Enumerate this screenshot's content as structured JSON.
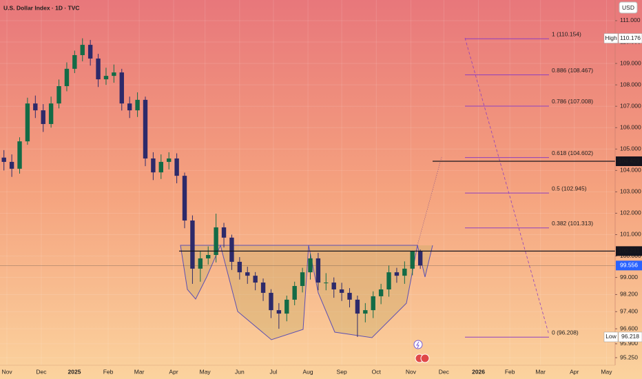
{
  "chart_data": {
    "type": "candlestick",
    "title": "U.S. Dollar Index · 1D · TVC",
    "currency": "USD",
    "categories": [
      null,
      null,
      null,
      null,
      null,
      null,
      null,
      null,
      null,
      null,
      null,
      null,
      null,
      null,
      null,
      null,
      null,
      null,
      null,
      null,
      null,
      null,
      null,
      null,
      null,
      null,
      null,
      null,
      null,
      null,
      null,
      null,
      null,
      null,
      null,
      null,
      null,
      null,
      null,
      null,
      null,
      null,
      null,
      null,
      null,
      null,
      null,
      null,
      null,
      null,
      null,
      null,
      null,
      null
    ],
    "open": [
      104.6,
      104.4,
      104.08,
      105.36,
      107.13,
      106.81,
      106.17,
      107.13,
      107.94,
      108.75,
      109.39,
      109.87,
      109.23,
      108.26,
      108.42,
      108.58,
      107.13,
      106.81,
      107.3,
      104.56,
      103.91,
      104.4,
      104.56,
      103.75,
      101.66,
      99.41,
      99.89,
      100.05,
      101.34,
      100.86,
      99.73,
      99.24,
      99.08,
      98.76,
      98.28,
      97.47,
      97.31,
      97.96,
      98.6,
      99.24,
      99.89,
      98.76,
      98.76,
      98.44,
      98.28,
      97.96,
      97.31,
      97.47,
      98.12,
      98.44,
      99.24,
      99.08,
      99.41,
      100.21
    ],
    "high": [
      104.95,
      104.75,
      105.55,
      107.4,
      107.5,
      107.1,
      107.45,
      108.25,
      109.05,
      109.6,
      110.176,
      110.1,
      109.45,
      108.8,
      108.95,
      108.75,
      107.45,
      107.65,
      107.45,
      104.85,
      104.75,
      104.85,
      104.8,
      103.9,
      101.9,
      100.25,
      100.45,
      101.98,
      101.55,
      101.0,
      99.95,
      99.5,
      99.25,
      98.95,
      98.45,
      97.8,
      98.15,
      98.8,
      99.45,
      100.1,
      100.15,
      99.2,
      99.0,
      98.75,
      98.5,
      98.15,
      97.8,
      98.35,
      98.7,
      99.55,
      99.45,
      99.75,
      100.25,
      100.3
    ],
    "low": [
      104.0,
      103.7,
      103.85,
      105.2,
      106.45,
      105.8,
      106.0,
      106.9,
      107.7,
      108.55,
      109.1,
      108.9,
      107.9,
      108.0,
      108.1,
      106.8,
      106.45,
      106.5,
      104.2,
      103.55,
      103.6,
      104.05,
      103.4,
      101.3,
      98.7,
      98.8,
      99.6,
      99.7,
      100.4,
      99.35,
      98.9,
      98.7,
      98.4,
      97.9,
      97.1,
      96.6,
      96.95,
      97.7,
      98.3,
      98.9,
      98.4,
      98.4,
      98.05,
      97.9,
      97.6,
      96.218,
      96.9,
      97.1,
      97.75,
      98.1,
      98.75,
      98.7,
      99.1,
      99.4
    ],
    "close": [
      104.4,
      104.08,
      105.36,
      107.13,
      106.81,
      106.17,
      107.13,
      107.94,
      108.75,
      109.39,
      109.87,
      109.23,
      108.26,
      108.42,
      108.58,
      107.13,
      106.81,
      107.3,
      104.56,
      103.91,
      104.4,
      104.56,
      103.75,
      101.66,
      99.41,
      99.89,
      100.05,
      101.34,
      100.86,
      99.73,
      99.24,
      99.08,
      98.76,
      98.28,
      97.47,
      97.31,
      97.96,
      98.6,
      99.24,
      99.89,
      98.76,
      98.76,
      98.44,
      98.28,
      97.96,
      97.31,
      97.47,
      98.12,
      98.44,
      99.24,
      99.08,
      99.41,
      100.21,
      99.556
    ],
    "up_color": "#136b46",
    "down_color": "#2d2a6a",
    "ylim": [
      94.897,
      111.966
    ],
    "yticks": [
      {
        "value": 111,
        "label": "111.000"
      },
      {
        "value": 110,
        "label": "110.000"
      },
      {
        "value": 109,
        "label": "109.000"
      },
      {
        "value": 108,
        "label": "108.000"
      },
      {
        "value": 107,
        "label": "107.000"
      },
      {
        "value": 106,
        "label": "106.000"
      },
      {
        "value": 105,
        "label": "105.000"
      },
      {
        "value": 104,
        "label": "104.000"
      },
      {
        "value": 103,
        "label": "103.000"
      },
      {
        "value": 102,
        "label": "102.000"
      },
      {
        "value": 101,
        "label": "101.000"
      },
      {
        "value": 100,
        "label": "100.000"
      },
      {
        "value": 99,
        "label": "99.000"
      },
      {
        "value": 98.2,
        "label": "98.200"
      },
      {
        "value": 97.4,
        "label": "97.400"
      },
      {
        "value": 96.6,
        "label": "96.600"
      },
      {
        "value": 95.9,
        "label": "95.900"
      },
      {
        "value": 95.25,
        "label": "95.250"
      }
    ],
    "xlim": [
      0,
      78.3
    ],
    "xticks": [
      {
        "value": 0.88,
        "label": "Nov"
      },
      {
        "value": 5.26,
        "label": "Dec"
      },
      {
        "value": 9.47,
        "label": "2025"
      },
      {
        "value": 13.77,
        "label": "Feb"
      },
      {
        "value": 17.72,
        "label": "Mar"
      },
      {
        "value": 22.1,
        "label": "Apr"
      },
      {
        "value": 26.1,
        "label": "May"
      },
      {
        "value": 30.5,
        "label": "Jun"
      },
      {
        "value": 34.8,
        "label": "Jul"
      },
      {
        "value": 39.2,
        "label": "Aug"
      },
      {
        "value": 43.5,
        "label": "Sep"
      },
      {
        "value": 47.9,
        "label": "Oct"
      },
      {
        "value": 52.3,
        "label": "Nov"
      },
      {
        "value": 56.5,
        "label": "Dec"
      },
      {
        "value": 60.9,
        "label": "2026"
      },
      {
        "value": 64.9,
        "label": "Feb"
      },
      {
        "value": 68.8,
        "label": "Mar"
      },
      {
        "value": 73.1,
        "label": "Apr"
      },
      {
        "value": 77.2,
        "label": "May"
      }
    ],
    "grid": true,
    "fib_color": "#8e3fbf",
    "fib_levels": [
      {
        "value": 110.154,
        "label": "1 (110.154)"
      },
      {
        "value": 108.467,
        "label": "0.886 (108.467)"
      },
      {
        "value": 107.008,
        "label": "0.786 (107.008)"
      },
      {
        "value": 104.602,
        "label": "0.618 (104.602)"
      },
      {
        "value": 102.945,
        "label": "0.5 (102.945)"
      },
      {
        "value": 101.313,
        "label": "0.382 (101.313)"
      },
      {
        "value": 96.208,
        "label": "0 (96.208)"
      }
    ],
    "extremes": [
      {
        "tag": "High",
        "value": 110.176
      },
      {
        "tag": "Low",
        "value": 96.218
      }
    ],
    "lines": [
      {
        "value": 100.231
      },
      {
        "value": 104.429
      }
    ],
    "last_price": 99.556
  }
}
